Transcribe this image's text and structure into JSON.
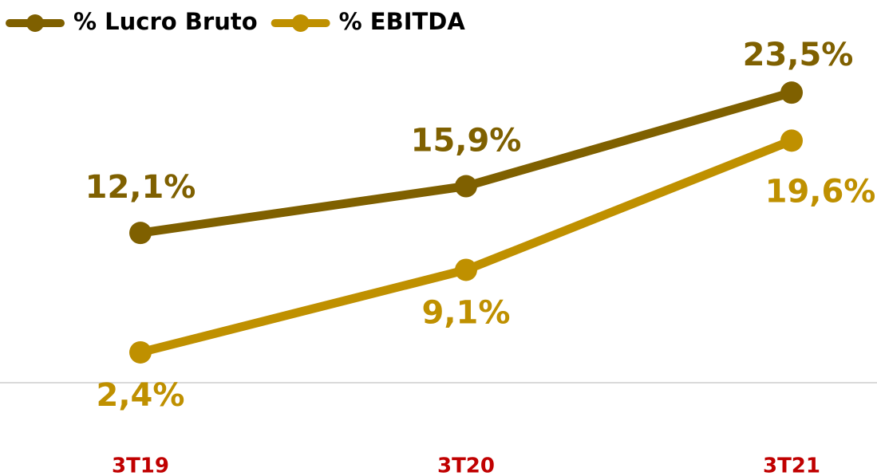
{
  "chart_data": {
    "type": "line",
    "categories": [
      "3T19",
      "3T20",
      "3T21"
    ],
    "series": [
      {
        "name": "% Lucro Bruto",
        "color": "#7f6000",
        "values": [
          12.1,
          15.9,
          23.5
        ],
        "value_labels": [
          "12,1%",
          "15,9%",
          "23,5%"
        ],
        "label_position": "above"
      },
      {
        "name": "% EBITDA",
        "color": "#bf9000",
        "values": [
          2.4,
          9.1,
          19.6
        ],
        "value_labels": [
          "2,4%",
          "9,1%",
          "19,6%"
        ],
        "label_position": "below"
      }
    ],
    "ylim": [
      0,
      25
    ],
    "category_color": "#c00000",
    "legend": "top-left"
  }
}
